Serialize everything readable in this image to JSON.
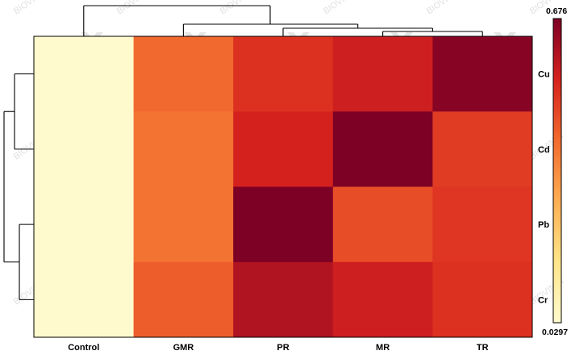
{
  "chart_data": {
    "type": "heatmap",
    "columns": [
      "Control",
      "GMR",
      "PR",
      "MR",
      "TR"
    ],
    "rows": [
      "Cu",
      "Cd",
      "Pb",
      "Cr"
    ],
    "values": [
      [
        0.03,
        0.42,
        0.52,
        0.56,
        0.66
      ],
      [
        0.03,
        0.4,
        0.55,
        0.676,
        0.5
      ],
      [
        0.03,
        0.4,
        0.676,
        0.47,
        0.51
      ],
      [
        0.03,
        0.44,
        0.6,
        0.56,
        0.52
      ]
    ],
    "colorbar": {
      "min_label": "0.0297",
      "max_label": "0.676",
      "min": 0.0297,
      "max": 0.676,
      "colors": [
        "#fffacd",
        "#ffe58a",
        "#fdae53",
        "#f26a2e",
        "#d6221e",
        "#7d0025"
      ]
    },
    "watermark_text": "BIOVINCI",
    "column_dendrogram": {
      "merges": [
        [
          "MR",
          "TR"
        ],
        [
          "PR",
          "MR+TR"
        ],
        [
          "GMR",
          "PR+MR+TR"
        ],
        [
          "Control",
          "GMR+PR+MR+TR"
        ]
      ]
    },
    "row_dendrogram": {
      "merges": [
        [
          "Cu",
          "Cd"
        ],
        [
          "Pb",
          "Cr"
        ],
        [
          "Cu+Cd",
          "Pb+Cr"
        ]
      ]
    }
  }
}
